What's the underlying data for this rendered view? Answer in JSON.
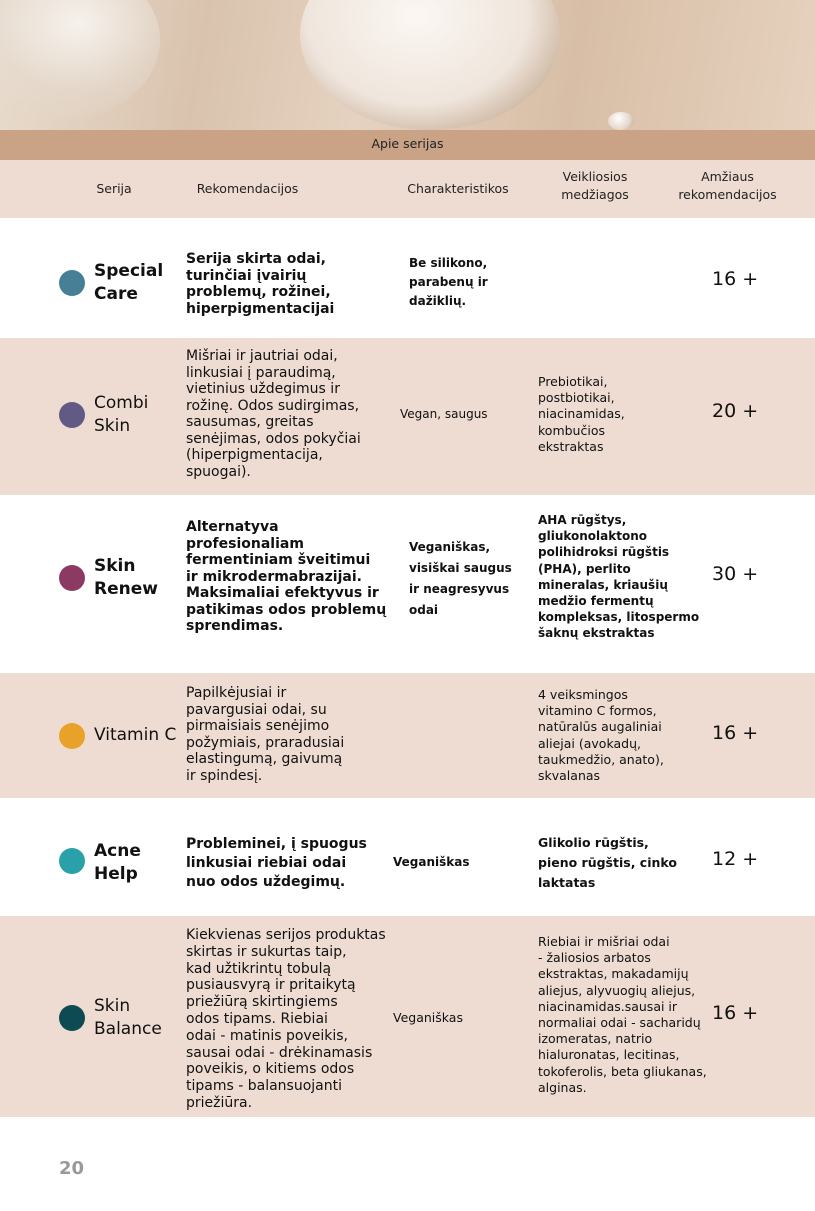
{
  "header": {
    "band_title": "Apie serijas",
    "columns": [
      "Serija",
      "Rekomendacijos",
      "Charakteristikos",
      "Veikliosios\nmedžiagos",
      "Amžiaus\nrekomendacijos"
    ]
  },
  "rows": [
    {
      "name": "Special\nCare",
      "color": "#477f96",
      "recommendation": "Serija skirta odai,\nturinčiai įvairių\nproblemų, rožinei,\nhiperpigmentacijai",
      "characteristics": "Be silikono,\nparabenų ir\ndažiklių.",
      "actives": "",
      "age": "16 +"
    },
    {
      "name": "Combi\nSkin",
      "color": "#615a85",
      "recommendation": "Mišriai ir jautriai odai,\nlinkusiai į paraudimą,\nvietinius uždegimus ir\nrožinę. Odos sudirgimas,\nsausumas, greitas\nsenėjimas, odos pokyčiai\n(hiperpigmentacija,\nspuogai).",
      "characteristics": "Vegan, saugus",
      "actives": "Prebiotikai,\npostbiotikai,\nniacinamidas,\nkombučios\nekstraktas",
      "age": "20 +"
    },
    {
      "name": "Skin\nRenew",
      "color": "#8d3a63",
      "recommendation": "Alternatyva\nprofesionaliam\nfermentiniam šveitimui\nir mikrodermabrazijai.\nMaksimaliai efektyvus ir\npatikimas odos problemų\nsprendimas.",
      "characteristics": "Veganiškas,\nvisiškai saugus\nir neagresyvus\nodai",
      "actives": "AHA rūgštys,\ngliukonolaktono\npolihidroksi rūgštis\n(PHA), perlito\nmineralas, kriaušių\nmedžio fermentų\nkompleksas, litospermo\nšaknų ekstraktas",
      "age": "30 +"
    },
    {
      "name": "Vitamin C",
      "color": "#e8a22a",
      "recommendation": "Papilkėjusiai ir\npavargusiai odai, su\npirmaisiais senėjimo\npožymiais, praradusiai\nelastingumą, gaivumą\nir spindesį.",
      "characteristics": "",
      "actives": "4 veiksmingos\nvitamino C formos,\nnatūralūs augaliniai\naliejai (avokadų,\ntaukmedžio, anato),\nskvalanas",
      "age": "16 +"
    },
    {
      "name": "Acne\nHelp",
      "color": "#2aa0a8",
      "recommendation": "Probleminei, į spuogus\nlinkusiai riebiai odai\nnuo odos uždegimų.",
      "characteristics": "Veganiškas",
      "actives": "Glikolio rūgštis,\npieno rūgštis, cinko\nlaktatas",
      "age": "12 +"
    },
    {
      "name": "Skin\nBalance",
      "color": "#0e4a52",
      "recommendation": "Kiekvienas serijos produktas\nskirtas ir sukurtas taip,\nkad užtikrintų tobulą\npusiausvyrą ir pritaikytą\npriežiūrą skirtingiems\nodos tipams. Riebiai\nodai - matinis poveikis,\nsausai odai - drėkinamasis\npoveikis, o kitiems odos\ntipams - balansuojanti\npriežiūra.",
      "characteristics": "Veganiškas",
      "actives": "Riebiai ir mišriai odai\n- žaliosios arbatos\nekstraktas, makadamijų\naliejus, alyvuogių aliejus,\nniacinamidas.sausai ir\nnormaliai odai - sacharidų\nizomeratas, natrio\nhialuronatas, lecitinas,\ntokoferolis, beta gliukanas,\nalginas.",
      "age": "16 +"
    }
  ],
  "page_number": "20"
}
